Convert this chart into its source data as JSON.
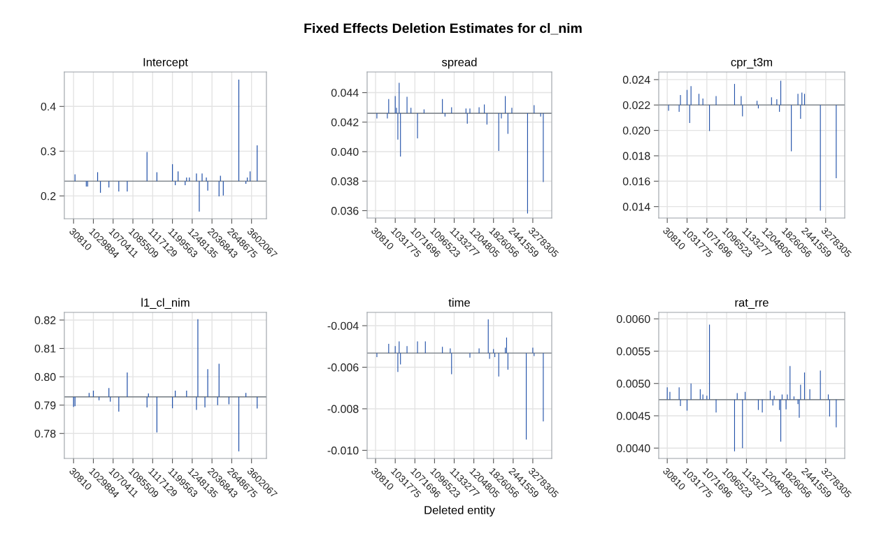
{
  "chart_data": [
    {
      "type": "bar",
      "title": "Intercept",
      "annotations": [
        "Fixed Effects Deletion Estimates for cl_nim"
      ],
      "color": "#2050a8",
      "grid": true,
      "ylim": [
        0.149,
        0.477
      ],
      "yticks": [
        0.2,
        0.3,
        0.4
      ],
      "ref_lines": [
        {
          "axis": "y",
          "value": 0.233,
          "color": "#858b91"
        }
      ],
      "categories": [
        "30810",
        null,
        null,
        null,
        null,
        null,
        null,
        null,
        null,
        null,
        null,
        null,
        null,
        null,
        "1029884",
        null,
        null,
        null,
        null,
        null,
        null,
        null,
        null,
        null,
        null,
        null,
        null,
        null,
        "1070411",
        null,
        null,
        null,
        null,
        null,
        null,
        null,
        null,
        null,
        null,
        null,
        null,
        null,
        "1085509",
        null,
        null,
        null,
        null,
        null,
        null,
        null,
        null,
        null,
        null,
        null,
        null,
        null,
        "1117129",
        null,
        null,
        null,
        null,
        null,
        null,
        null,
        null,
        null,
        null,
        null,
        null,
        null,
        "1199563",
        null,
        null,
        null,
        null,
        null,
        null,
        null,
        null,
        null,
        null,
        null,
        null,
        null,
        "1248135",
        null,
        null,
        null,
        null,
        null,
        null,
        null,
        null,
        null,
        null,
        null,
        null,
        null,
        "2036843",
        null,
        null,
        null,
        null,
        null,
        null,
        null,
        null,
        null,
        null,
        null,
        null,
        null,
        "2648675",
        null,
        null,
        null,
        null,
        null,
        null,
        null,
        null,
        null,
        null,
        null,
        null,
        null,
        "3602067",
        null,
        null,
        null,
        null
      ],
      "base": [
        null,
        0.233,
        null,
        null,
        null,
        null,
        null,
        null,
        null,
        0.233,
        0.233,
        null,
        null,
        null,
        null,
        null,
        null,
        0.233,
        null,
        0.233,
        null,
        null,
        null,
        null,
        null,
        0.233,
        null,
        null,
        null,
        null,
        null,
        null,
        0.233,
        null,
        null,
        null,
        null,
        null,
        0.233,
        null,
        null,
        null,
        null,
        null,
        null,
        null,
        null,
        null,
        null,
        null,
        null,
        null,
        0.233,
        null,
        null,
        null,
        null,
        null,
        null,
        0.233,
        null,
        null,
        null,
        null,
        null,
        null,
        null,
        null,
        null,
        null,
        0.233,
        null,
        0.233,
        null,
        0.233,
        null,
        null,
        null,
        null,
        0.233,
        0.233,
        null,
        0.233,
        null,
        null,
        null,
        null,
        0.233,
        null,
        0.233,
        null,
        0.233,
        null,
        null,
        0.233,
        0.233,
        null,
        null,
        null,
        null,
        null,
        null,
        null,
        0.233,
        0.233,
        null,
        0.233,
        null,
        null,
        null,
        null,
        null,
        null,
        null,
        null,
        null,
        null,
        0.233,
        null,
        null,
        null,
        null,
        0.233,
        0.233,
        null,
        0.233,
        null,
        null,
        null,
        null,
        0.233
      ],
      "values": [
        null,
        0.015,
        null,
        null,
        null,
        null,
        null,
        null,
        null,
        -0.012,
        -0.012,
        null,
        null,
        null,
        null,
        null,
        null,
        0.02,
        null,
        -0.026,
        null,
        null,
        null,
        null,
        null,
        -0.014,
        null,
        null,
        null,
        null,
        null,
        null,
        -0.023,
        null,
        null,
        null,
        null,
        null,
        -0.023,
        null,
        null,
        null,
        null,
        null,
        null,
        null,
        null,
        null,
        null,
        null,
        null,
        null,
        0.065,
        null,
        null,
        null,
        null,
        null,
        null,
        0.02,
        null,
        null,
        null,
        null,
        null,
        null,
        null,
        null,
        null,
        null,
        0.038,
        null,
        -0.009,
        null,
        0.022,
        null,
        null,
        null,
        null,
        -0.009,
        0.008,
        null,
        0.008,
        null,
        null,
        null,
        null,
        0.017,
        null,
        -0.068,
        null,
        0.017,
        null,
        null,
        0.008,
        -0.021,
        null,
        null,
        null,
        null,
        null,
        null,
        null,
        -0.034,
        0.012,
        null,
        -0.032,
        null,
        null,
        null,
        null,
        null,
        null,
        null,
        null,
        null,
        null,
        0.227,
        null,
        null,
        null,
        null,
        -0.006,
        0.008,
        null,
        0.022,
        null,
        null,
        null,
        null,
        0.08
      ]
    },
    {
      "type": "bar",
      "title": "spread",
      "color": "#2050a8",
      "grid": true,
      "ylim": [
        0.0355,
        0.0454
      ],
      "yticks": [
        {
          "value": 0.036,
          "label": "0.036"
        },
        {
          "value": 0.038,
          "label": "0.038"
        },
        {
          "value": 0.04,
          "label": "0.040"
        },
        {
          "value": 0.042,
          "label": "0.042"
        },
        {
          "value": 0.044,
          "label": "0.044"
        }
      ],
      "ref_lines": [
        {
          "axis": "y",
          "value": 0.0426,
          "color": "#858b91"
        }
      ],
      "categories": [
        "30810",
        null,
        null,
        null,
        null,
        null,
        null,
        null,
        null,
        null,
        null,
        null,
        null,
        null,
        null,
        "1031775",
        null,
        null,
        null,
        null,
        null,
        null,
        null,
        null,
        null,
        null,
        null,
        null,
        null,
        null,
        "1071696",
        null,
        null,
        null,
        null,
        null,
        null,
        null,
        null,
        null,
        null,
        null,
        null,
        null,
        null,
        "1096523",
        null,
        null,
        null,
        null,
        null,
        null,
        null,
        null,
        null,
        null,
        null,
        null,
        null,
        null,
        "1133277",
        null,
        null,
        null,
        null,
        null,
        null,
        null,
        null,
        null,
        null,
        null,
        null,
        null,
        null,
        "1204805",
        null,
        null,
        null,
        null,
        null,
        null,
        null,
        null,
        null,
        null,
        null,
        null,
        null,
        null,
        "1826056",
        null,
        null,
        null,
        null,
        null,
        null,
        null,
        null,
        null,
        null,
        null,
        null,
        null,
        null,
        "2441559",
        null,
        null,
        null,
        null,
        null,
        null,
        null,
        null,
        null,
        null,
        null,
        null,
        null,
        null,
        "3278305",
        null,
        null,
        null,
        null,
        null,
        null,
        null,
        null
      ],
      "base": [
        null,
        0.0426,
        null,
        null,
        null,
        null,
        null,
        null,
        null,
        0.0426,
        0.0426,
        null,
        null,
        null,
        null,
        0.0426,
        0.0426,
        0.0426,
        0.0426,
        0.0426,
        null,
        null,
        null,
        null,
        0.0426,
        null,
        null,
        0.0426,
        null,
        null,
        null,
        null,
        0.0426,
        null,
        null,
        null,
        null,
        0.0426,
        null,
        null,
        null,
        null,
        null,
        null,
        null,
        null,
        null,
        null,
        null,
        null,
        null,
        0.0426,
        null,
        0.0426,
        null,
        null,
        null,
        null,
        0.0426,
        null,
        null,
        null,
        null,
        null,
        null,
        null,
        null,
        null,
        null,
        0.0426,
        0.0426,
        null,
        0.0426,
        null,
        null,
        null,
        null,
        null,
        null,
        0.0426,
        null,
        null,
        null,
        0.0426,
        null,
        0.0426,
        null,
        null,
        null,
        null,
        null,
        null,
        null,
        null,
        0.0426,
        null,
        0.0426,
        null,
        null,
        0.0426,
        null,
        0.0426,
        null,
        null,
        0.0426,
        null,
        null,
        null,
        null,
        null,
        null,
        null,
        null,
        null,
        null,
        null,
        0.0426,
        null,
        null,
        null,
        null,
        0.0426,
        null,
        null,
        null,
        null,
        0.0426,
        null,
        0.0426
      ],
      "values": [
        null,
        -0.00035,
        null,
        null,
        null,
        null,
        null,
        null,
        null,
        -0.00035,
        0.00096,
        null,
        null,
        null,
        null,
        0.00116,
        0.00037,
        -0.00178,
        0.00206,
        -0.00293,
        null,
        null,
        null,
        null,
        0.00112,
        null,
        null,
        0.00037,
        null,
        null,
        null,
        null,
        -0.0017,
        null,
        null,
        null,
        null,
        0.00026,
        null,
        null,
        null,
        null,
        null,
        null,
        null,
        null,
        null,
        null,
        null,
        null,
        null,
        0.00096,
        null,
        -0.00022,
        null,
        null,
        null,
        null,
        0.00041,
        null,
        null,
        null,
        null,
        null,
        null,
        null,
        null,
        null,
        null,
        0.00032,
        -0.0007,
        null,
        0.00032,
        null,
        null,
        null,
        null,
        null,
        null,
        0.00041,
        null,
        null,
        null,
        0.0006,
        null,
        -0.00076,
        null,
        null,
        null,
        null,
        null,
        null,
        null,
        null,
        -0.00255,
        null,
        -0.00035,
        null,
        null,
        0.00116,
        null,
        -0.00139,
        null,
        null,
        0.00037,
        null,
        null,
        null,
        null,
        null,
        null,
        null,
        null,
        null,
        null,
        null,
        -0.00679,
        null,
        null,
        null,
        null,
        0.00055,
        null,
        null,
        null,
        null,
        -0.00022,
        null,
        -0.00466
      ]
    },
    {
      "type": "bar",
      "title": "cpr_t3m",
      "color": "#2050a8",
      "grid": true,
      "ylim": [
        0.0131,
        0.0246
      ],
      "yticks": [
        {
          "value": 0.014,
          "label": "0.014"
        },
        {
          "value": 0.016,
          "label": "0.016"
        },
        {
          "value": 0.018,
          "label": "0.018"
        },
        {
          "value": 0.02,
          "label": "0.020"
        },
        {
          "value": 0.022,
          "label": "0.022"
        },
        {
          "value": 0.024,
          "label": "0.024"
        }
      ],
      "ref_lines": [
        {
          "axis": "y",
          "value": 0.022,
          "color": "#858b91"
        }
      ],
      "categories": [
        "30810",
        null,
        null,
        null,
        null,
        null,
        null,
        null,
        null,
        null,
        null,
        null,
        null,
        null,
        null,
        "1031775",
        null,
        null,
        null,
        null,
        null,
        null,
        null,
        null,
        null,
        null,
        null,
        null,
        null,
        null,
        "1071696",
        null,
        null,
        null,
        null,
        null,
        null,
        null,
        null,
        null,
        null,
        null,
        null,
        null,
        null,
        "1096523",
        null,
        null,
        null,
        null,
        null,
        null,
        null,
        null,
        null,
        null,
        null,
        null,
        null,
        null,
        "1133277",
        null,
        null,
        null,
        null,
        null,
        null,
        null,
        null,
        null,
        null,
        null,
        null,
        null,
        null,
        "1204805",
        null,
        null,
        null,
        null,
        null,
        null,
        null,
        null,
        null,
        null,
        null,
        null,
        null,
        null,
        "1826056",
        null,
        null,
        null,
        null,
        null,
        null,
        null,
        null,
        null,
        null,
        null,
        null,
        null,
        null,
        "2441559",
        null,
        null,
        null,
        null,
        null,
        null,
        null,
        null,
        null,
        null,
        null,
        null,
        null,
        null,
        "3278305",
        null,
        null,
        null,
        null,
        null,
        null,
        null,
        null
      ],
      "base": [
        null,
        0.022,
        null,
        null,
        null,
        null,
        null,
        null,
        null,
        0.022,
        0.022,
        null,
        null,
        null,
        null,
        0.022,
        null,
        0.022,
        0.022,
        null,
        null,
        null,
        null,
        null,
        0.022,
        null,
        null,
        0.022,
        null,
        null,
        null,
        null,
        0.022,
        null,
        null,
        null,
        null,
        0.022,
        null,
        null,
        null,
        null,
        null,
        null,
        null,
        null,
        null,
        null,
        null,
        null,
        null,
        0.022,
        null,
        null,
        null,
        null,
        0.022,
        0.022,
        null,
        null,
        null,
        null,
        null,
        null,
        null,
        null,
        null,
        null,
        0.022,
        0.022,
        null,
        null,
        null,
        null,
        null,
        null,
        null,
        null,
        null,
        0.022,
        null,
        null,
        null,
        0.022,
        null,
        0.022,
        0.022,
        null,
        null,
        null,
        null,
        null,
        null,
        null,
        0.022,
        null,
        null,
        null,
        null,
        0.022,
        null,
        0.022,
        0.022,
        null,
        0.022,
        null,
        null,
        null,
        null,
        null,
        null,
        null,
        null,
        null,
        null,
        null,
        0.022,
        null,
        null,
        null,
        null,
        null,
        null,
        null,
        null,
        null,
        null,
        null,
        0.022
      ],
      "values": [
        null,
        -0.00046,
        null,
        null,
        null,
        null,
        null,
        null,
        null,
        -0.00053,
        0.00079,
        null,
        null,
        null,
        null,
        0.00119,
        null,
        -0.00141,
        0.00148,
        null,
        null,
        null,
        null,
        null,
        0.00088,
        null,
        null,
        0.00051,
        null,
        null,
        null,
        null,
        -0.00205,
        null,
        null,
        null,
        null,
        0.0007,
        null,
        null,
        null,
        null,
        null,
        null,
        null,
        null,
        null,
        null,
        null,
        null,
        null,
        0.00166,
        null,
        null,
        null,
        null,
        0.0007,
        -0.0009,
        null,
        null,
        null,
        null,
        null,
        null,
        null,
        null,
        null,
        null,
        0.00033,
        -0.00027,
        null,
        null,
        null,
        null,
        null,
        null,
        null,
        null,
        null,
        0.0006,
        null,
        null,
        null,
        0.00046,
        null,
        -0.00053,
        0.00191,
        null,
        null,
        null,
        null,
        null,
        null,
        null,
        -0.00364,
        null,
        null,
        null,
        null,
        0.00088,
        null,
        -0.00108,
        0.00097,
        null,
        0.00088,
        null,
        null,
        null,
        null,
        null,
        null,
        null,
        null,
        null,
        null,
        null,
        -0.00832,
        null,
        null,
        null,
        null,
        null,
        null,
        null,
        null,
        null,
        null,
        null,
        -0.00576
      ]
    },
    {
      "type": "bar",
      "title": "l1_cl_nim",
      "color": "#2050a8",
      "grid": true,
      "ylim": [
        0.7712,
        0.8227
      ],
      "yticks": [
        {
          "value": 0.78,
          "label": "0.78"
        },
        {
          "value": 0.79,
          "label": "0.79"
        },
        {
          "value": 0.8,
          "label": "0.80"
        },
        {
          "value": 0.81,
          "label": "0.81"
        },
        {
          "value": 0.82,
          "label": "0.82"
        }
      ],
      "ref_lines": [
        {
          "axis": "y",
          "value": 0.7929,
          "color": "#858b91"
        }
      ],
      "categories": [
        "30810",
        null,
        null,
        null,
        null,
        null,
        null,
        null,
        null,
        null,
        null,
        null,
        null,
        null,
        "1029884",
        null,
        null,
        null,
        null,
        null,
        null,
        null,
        null,
        null,
        null,
        null,
        null,
        null,
        "1070411",
        null,
        null,
        null,
        null,
        null,
        null,
        null,
        null,
        null,
        null,
        null,
        null,
        null,
        "1085509",
        null,
        null,
        null,
        null,
        null,
        null,
        null,
        null,
        null,
        null,
        null,
        null,
        null,
        "1117129",
        null,
        null,
        null,
        null,
        null,
        null,
        null,
        null,
        null,
        null,
        null,
        null,
        null,
        "1199563",
        null,
        null,
        null,
        null,
        null,
        null,
        null,
        null,
        null,
        null,
        null,
        null,
        null,
        "1248135",
        null,
        null,
        null,
        null,
        null,
        null,
        null,
        null,
        null,
        null,
        null,
        null,
        null,
        "2036843",
        null,
        null,
        null,
        null,
        null,
        null,
        null,
        null,
        null,
        null,
        null,
        null,
        null,
        "2648675",
        null,
        null,
        null,
        null,
        null,
        null,
        null,
        null,
        null,
        null,
        null,
        null,
        null,
        "3602067",
        null,
        null,
        null,
        null
      ],
      "base": [
        0.7929,
        0.7929,
        null,
        null,
        null,
        null,
        null,
        null,
        null,
        null,
        null,
        0.7929,
        null,
        null,
        0.7929,
        null,
        null,
        null,
        0.7929,
        null,
        null,
        null,
        null,
        null,
        null,
        0.7929,
        0.7929,
        null,
        null,
        null,
        null,
        null,
        0.7929,
        null,
        null,
        null,
        null,
        null,
        0.7929,
        null,
        null,
        null,
        null,
        null,
        null,
        null,
        null,
        null,
        null,
        null,
        null,
        null,
        0.7929,
        0.7929,
        null,
        null,
        null,
        null,
        null,
        0.7929,
        null,
        null,
        null,
        null,
        null,
        null,
        null,
        null,
        null,
        null,
        0.7929,
        null,
        0.7929,
        null,
        null,
        null,
        null,
        null,
        null,
        null,
        0.7929,
        null,
        null,
        null,
        null,
        null,
        null,
        0.7929,
        0.7929,
        null,
        null,
        null,
        null,
        0.7929,
        null,
        0.7929,
        null,
        null,
        null,
        null,
        null,
        null,
        0.7929,
        0.7929,
        null,
        null,
        null,
        null,
        null,
        null,
        0.7929,
        null,
        null,
        null,
        null,
        null,
        null,
        0.7929,
        null,
        null,
        null,
        null,
        0.7929,
        null,
        null,
        null,
        null,
        null,
        null,
        null,
        0.7929
      ],
      "values": [
        -0.0035,
        -0.0033,
        null,
        null,
        null,
        null,
        null,
        null,
        null,
        null,
        null,
        0.0014,
        null,
        null,
        0.0022,
        null,
        null,
        null,
        -0.0012,
        null,
        null,
        null,
        null,
        null,
        null,
        0.0031,
        -0.0017,
        null,
        null,
        null,
        null,
        null,
        -0.0052,
        null,
        null,
        null,
        null,
        null,
        0.0086,
        null,
        null,
        null,
        null,
        null,
        null,
        null,
        null,
        null,
        null,
        null,
        null,
        null,
        -0.0037,
        0.0012,
        null,
        null,
        null,
        null,
        null,
        -0.0125,
        null,
        null,
        null,
        null,
        null,
        null,
        null,
        null,
        null,
        null,
        -0.004,
        null,
        0.0022,
        null,
        null,
        null,
        null,
        null,
        null,
        null,
        0.0022,
        null,
        null,
        null,
        null,
        null,
        null,
        -0.0046,
        0.0274,
        null,
        null,
        null,
        null,
        -0.0037,
        null,
        0.0098,
        null,
        null,
        null,
        null,
        null,
        null,
        -0.0029,
        0.0117,
        null,
        null,
        null,
        null,
        null,
        null,
        -0.0026,
        null,
        null,
        null,
        null,
        null,
        null,
        -0.0192,
        null,
        null,
        null,
        null,
        0.0014,
        null,
        null,
        null,
        null,
        null,
        null,
        null,
        -0.0041
      ]
    },
    {
      "type": "bar",
      "title": "time",
      "xlabel": "Deleted entity",
      "color": "#2050a8",
      "grid": true,
      "ylim": [
        -0.01039,
        -0.00336
      ],
      "yticks": [
        {
          "value": -0.01,
          "label": "-0.010"
        },
        {
          "value": -0.008,
          "label": "-0.008"
        },
        {
          "value": -0.006,
          "label": "-0.006"
        },
        {
          "value": -0.004,
          "label": "-0.004"
        }
      ],
      "ref_lines": [
        {
          "axis": "y",
          "value": -0.00532,
          "color": "#858b91"
        }
      ],
      "categories": [
        "30810",
        null,
        null,
        null,
        null,
        null,
        null,
        null,
        null,
        null,
        null,
        null,
        null,
        null,
        null,
        "1031775",
        null,
        null,
        null,
        null,
        null,
        null,
        null,
        null,
        null,
        null,
        null,
        null,
        null,
        null,
        "1071696",
        null,
        null,
        null,
        null,
        null,
        null,
        null,
        null,
        null,
        null,
        null,
        null,
        null,
        null,
        "1096523",
        null,
        null,
        null,
        null,
        null,
        null,
        null,
        null,
        null,
        null,
        null,
        null,
        null,
        null,
        "1133277",
        null,
        null,
        null,
        null,
        null,
        null,
        null,
        null,
        null,
        null,
        null,
        null,
        null,
        null,
        "1204805",
        null,
        null,
        null,
        null,
        null,
        null,
        null,
        null,
        null,
        null,
        null,
        null,
        null,
        null,
        "1826056",
        null,
        null,
        null,
        null,
        null,
        null,
        null,
        null,
        null,
        null,
        null,
        null,
        null,
        null,
        "2441559",
        null,
        null,
        null,
        null,
        null,
        null,
        null,
        null,
        null,
        null,
        null,
        null,
        null,
        null,
        "3278305",
        null,
        null,
        null,
        null,
        null,
        null,
        null,
        null
      ],
      "base": [
        null,
        -0.00532,
        null,
        null,
        null,
        null,
        null,
        null,
        null,
        null,
        -0.00532,
        null,
        null,
        null,
        null,
        -0.00532,
        null,
        -0.00532,
        -0.00532,
        -0.00532,
        null,
        null,
        null,
        null,
        -0.00532,
        null,
        null,
        null,
        null,
        null,
        null,
        null,
        -0.00532,
        null,
        null,
        null,
        null,
        null,
        -0.00532,
        null,
        null,
        null,
        null,
        null,
        null,
        null,
        null,
        null,
        null,
        null,
        null,
        -0.00532,
        null,
        null,
        null,
        null,
        null,
        -0.00532,
        -0.00532,
        null,
        null,
        null,
        null,
        null,
        null,
        null,
        null,
        null,
        null,
        null,
        null,
        null,
        -0.00532,
        null,
        null,
        null,
        null,
        null,
        null,
        -0.00532,
        null,
        null,
        null,
        null,
        null,
        null,
        -0.00532,
        -0.00532,
        null,
        null,
        -0.00532,
        -0.00532,
        null,
        null,
        -0.00532,
        null,
        null,
        null,
        null,
        -0.00532,
        -0.00532,
        -0.00532,
        null,
        null,
        null,
        null,
        null,
        null,
        null,
        null,
        null,
        null,
        null,
        null,
        null,
        -0.00532,
        null,
        null,
        null,
        null,
        -0.00532,
        -0.00532,
        null,
        null,
        null,
        null,
        null,
        null,
        -0.00532
      ],
      "values": [
        null,
        -0.00019,
        null,
        null,
        null,
        null,
        null,
        null,
        null,
        null,
        0.00045,
        null,
        null,
        null,
        null,
        0.00034,
        null,
        -0.00091,
        0.00056,
        -0.00055,
        null,
        null,
        null,
        null,
        0.00034,
        null,
        null,
        null,
        null,
        null,
        null,
        null,
        0.00056,
        null,
        null,
        null,
        null,
        null,
        0.00056,
        null,
        null,
        null,
        null,
        null,
        null,
        null,
        null,
        null,
        null,
        null,
        null,
        0.0003,
        null,
        null,
        null,
        null,
        null,
        0.00023,
        -0.00102,
        null,
        null,
        null,
        null,
        null,
        null,
        null,
        null,
        null,
        null,
        null,
        null,
        null,
        -0.00022,
        null,
        null,
        null,
        null,
        null,
        null,
        0.00023,
        null,
        null,
        null,
        null,
        null,
        null,
        0.00162,
        -0.00028,
        null,
        null,
        0.00019,
        -0.00019,
        null,
        null,
        -0.00113,
        null,
        null,
        null,
        null,
        0.00026,
        0.00075,
        -0.0008,
        null,
        null,
        null,
        null,
        null,
        null,
        null,
        null,
        null,
        null,
        null,
        null,
        null,
        -0.00416,
        null,
        null,
        null,
        null,
        0.00026,
        -0.00014,
        null,
        null,
        null,
        null,
        null,
        null,
        -0.00329
      ]
    },
    {
      "type": "bar",
      "title": "rat_rre",
      "color": "#2050a8",
      "grid": true,
      "ylim": [
        0.00384,
        0.0061
      ],
      "yticks": [
        {
          "value": 0.004,
          "label": "0.0040"
        },
        {
          "value": 0.0045,
          "label": "0.0045"
        },
        {
          "value": 0.005,
          "label": "0.0050"
        },
        {
          "value": 0.0055,
          "label": "0.0055"
        },
        {
          "value": 0.006,
          "label": "0.0060"
        }
      ],
      "ref_lines": [
        {
          "axis": "y",
          "value": 0.00475,
          "color": "#858b91"
        }
      ],
      "categories": [
        "30810",
        null,
        null,
        null,
        null,
        null,
        null,
        null,
        null,
        null,
        null,
        null,
        null,
        null,
        null,
        "1031775",
        null,
        null,
        null,
        null,
        null,
        null,
        null,
        null,
        null,
        null,
        null,
        null,
        null,
        null,
        "1071696",
        null,
        null,
        null,
        null,
        null,
        null,
        null,
        null,
        null,
        null,
        null,
        null,
        null,
        null,
        "1096523",
        null,
        null,
        null,
        null,
        null,
        null,
        null,
        null,
        null,
        null,
        null,
        null,
        null,
        null,
        "1133277",
        null,
        null,
        null,
        null,
        null,
        null,
        null,
        null,
        null,
        null,
        null,
        null,
        null,
        null,
        "1204805",
        null,
        null,
        null,
        null,
        null,
        null,
        null,
        null,
        null,
        null,
        null,
        null,
        null,
        null,
        "1826056",
        null,
        null,
        null,
        null,
        null,
        null,
        null,
        null,
        null,
        null,
        null,
        null,
        null,
        null,
        "2441559",
        null,
        null,
        null,
        null,
        null,
        null,
        null,
        null,
        null,
        null,
        null,
        null,
        null,
        null,
        "3278305",
        null,
        null,
        null,
        null,
        null,
        null,
        null,
        null
      ],
      "base": [
        0.00475,
        null,
        0.00475,
        null,
        null,
        null,
        null,
        null,
        null,
        0.00475,
        0.00475,
        null,
        null,
        null,
        null,
        0.00475,
        null,
        null,
        0.00475,
        null,
        null,
        null,
        null,
        null,
        null,
        0.00475,
        null,
        0.00475,
        null,
        null,
        0.00475,
        null,
        0.00475,
        null,
        null,
        null,
        null,
        0.00475,
        null,
        null,
        null,
        null,
        null,
        null,
        null,
        null,
        null,
        null,
        null,
        null,
        null,
        0.00475,
        null,
        0.00475,
        null,
        null,
        null,
        0.00475,
        null,
        0.00475,
        null,
        null,
        null,
        null,
        null,
        null,
        null,
        null,
        null,
        0.00475,
        null,
        null,
        0.00475,
        null,
        null,
        null,
        null,
        null,
        0.00475,
        null,
        0.00475,
        0.00475,
        null,
        null,
        null,
        0.00475,
        0.00475,
        0.00475,
        null,
        null,
        0.00475,
        0.00475,
        null,
        0.00475,
        null,
        null,
        0.00475,
        null,
        null,
        0.00475,
        0.00475,
        0.00475,
        null,
        null,
        0.00475,
        null,
        null,
        null,
        0.00475,
        null,
        null,
        null,
        null,
        null,
        null,
        null,
        0.00475,
        null,
        null,
        null,
        null,
        null,
        0.00475,
        0.00475,
        null,
        null,
        null,
        null,
        0.00475
      ],
      "values": [
        0.00019,
        null,
        0.00012,
        null,
        null,
        null,
        null,
        null,
        null,
        0.00019,
        -0.0001,
        null,
        null,
        null,
        null,
        -0.00017,
        null,
        null,
        0.00025,
        null,
        null,
        null,
        null,
        null,
        null,
        0.00016,
        null,
        8e-05,
        null,
        null,
        6e-05,
        null,
        0.00116,
        null,
        null,
        null,
        null,
        -0.0002,
        null,
        null,
        null,
        null,
        null,
        null,
        null,
        null,
        null,
        null,
        null,
        null,
        null,
        -0.0008,
        null,
        0.0001,
        null,
        null,
        null,
        -0.00075,
        null,
        0.00012,
        null,
        null,
        null,
        null,
        null,
        null,
        null,
        null,
        null,
        -0.00016,
        null,
        null,
        -0.0002,
        null,
        null,
        null,
        null,
        null,
        0.00014,
        null,
        -9e-05,
        6e-05,
        null,
        null,
        null,
        -0.00016,
        -0.00065,
        8e-05,
        null,
        null,
        -0.00015,
        8e-05,
        null,
        0.00052,
        null,
        null,
        5e-05,
        null,
        null,
        -7e-05,
        -0.00028,
        0.00023,
        null,
        null,
        0.00042,
        null,
        null,
        null,
        0.00016,
        null,
        null,
        null,
        null,
        null,
        null,
        null,
        0.00045,
        null,
        null,
        null,
        null,
        null,
        8e-05,
        -0.00026,
        null,
        null,
        null,
        null,
        -0.00043
      ]
    }
  ]
}
